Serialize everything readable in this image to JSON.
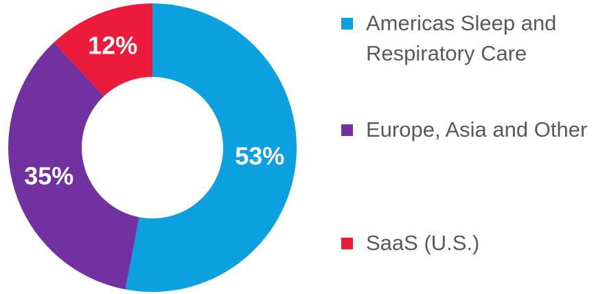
{
  "chart_data": {
    "type": "donut",
    "categories": [
      "Americas Sleep and Respiratory Care",
      "Europe, Asia and Other",
      "SaaS (U.S.)"
    ],
    "values": [
      53,
      35,
      12
    ],
    "value_labels": [
      "53%",
      "35%",
      "12%"
    ],
    "colors": [
      "#0ba0df",
      "#7131a1",
      "#ec1b3b"
    ]
  }
}
